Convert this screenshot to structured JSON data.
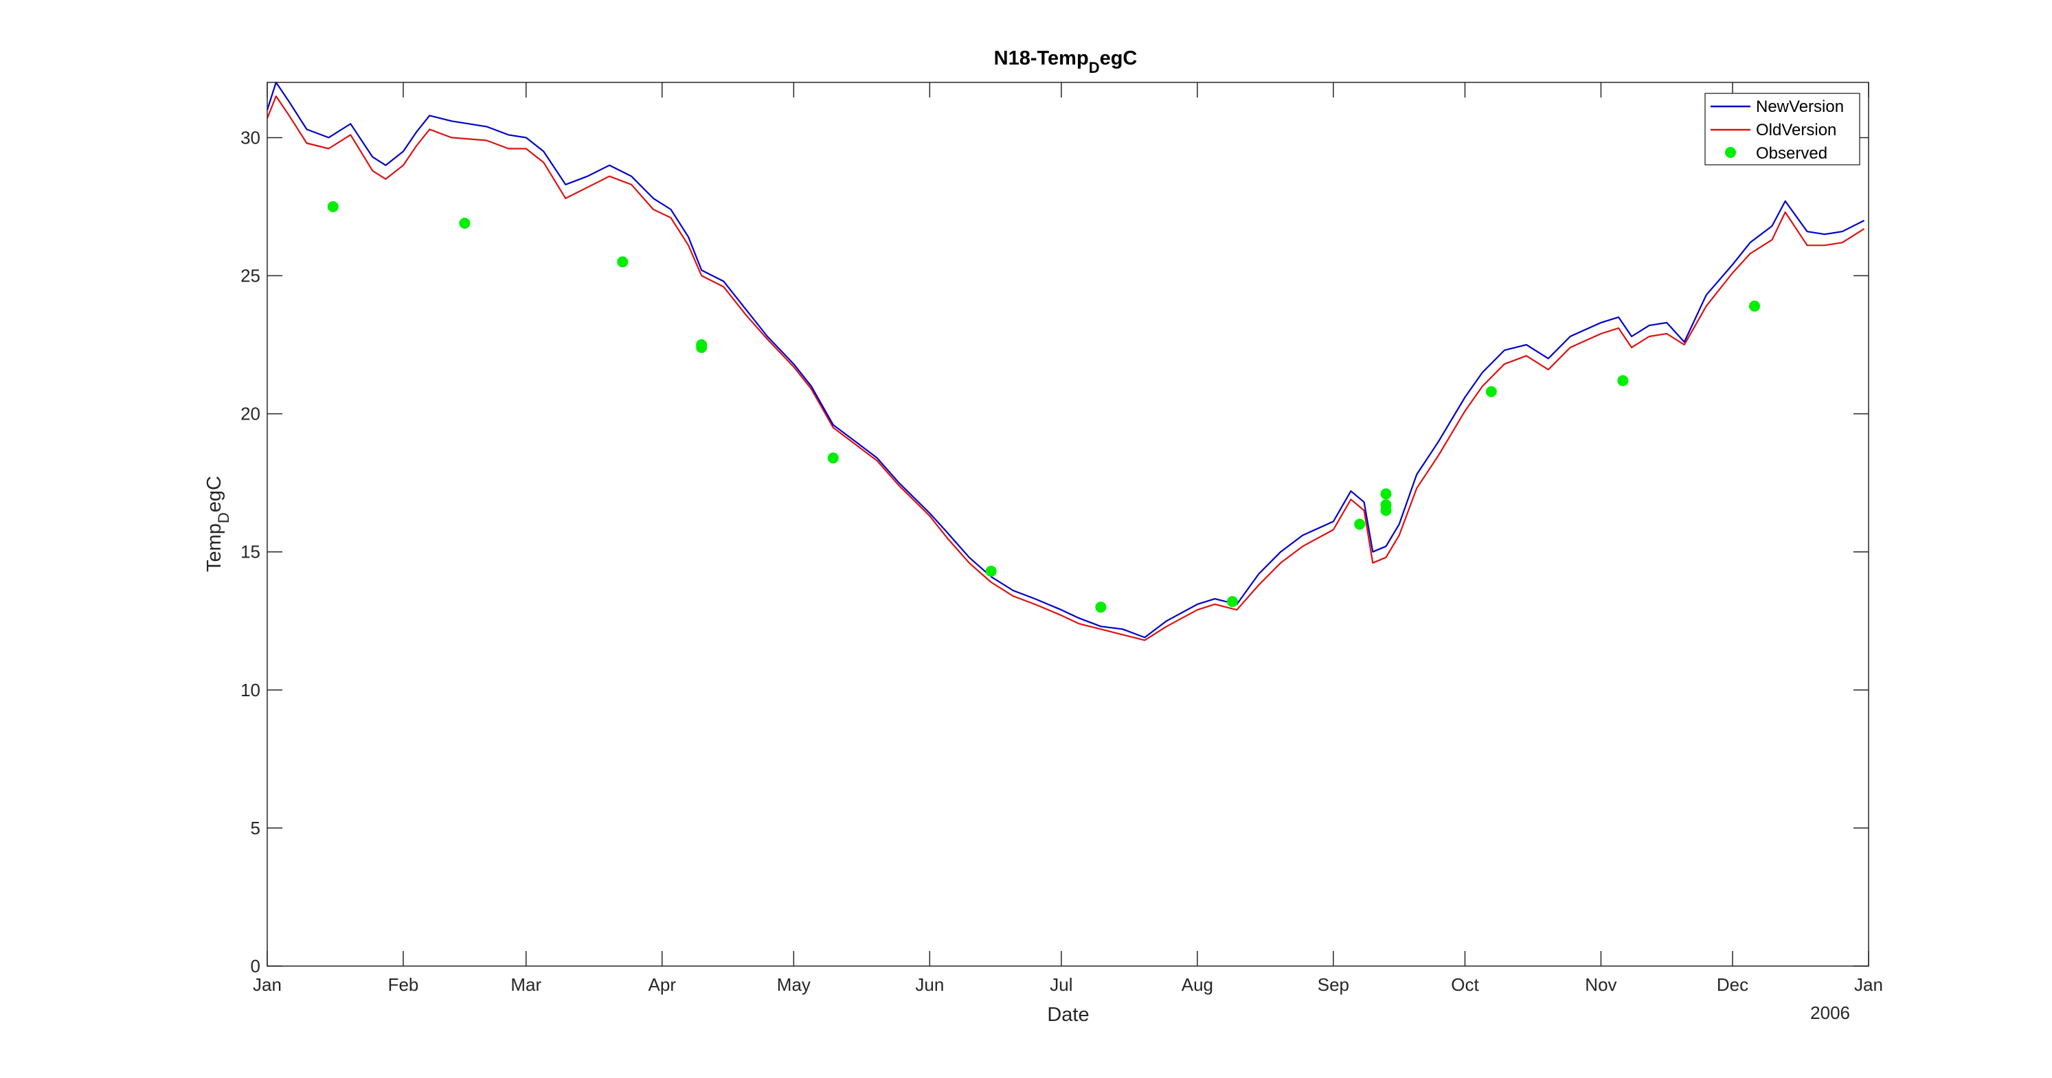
{
  "chart_data": {
    "type": "line",
    "title": {
      "main": "N18-Temp",
      "sub": "D",
      "tail": "egC"
    },
    "xlabel": "Date",
    "ylabel": {
      "main": "Temp",
      "sub": "D",
      "tail": "egC"
    },
    "year_label": "2006",
    "xlim": [
      "2006-01-01",
      "2007-01-01"
    ],
    "ylim": [
      0,
      32
    ],
    "y_ticks": [
      0,
      5,
      10,
      15,
      20,
      25,
      30
    ],
    "x_ticks": [
      {
        "date": "2006-01-01",
        "label": "Jan"
      },
      {
        "date": "2006-02-01",
        "label": "Feb"
      },
      {
        "date": "2006-03-01",
        "label": "Mar"
      },
      {
        "date": "2006-04-01",
        "label": "Apr"
      },
      {
        "date": "2006-05-01",
        "label": "May"
      },
      {
        "date": "2006-06-01",
        "label": "Jun"
      },
      {
        "date": "2006-07-01",
        "label": "Jul"
      },
      {
        "date": "2006-08-01",
        "label": "Aug"
      },
      {
        "date": "2006-09-01",
        "label": "Sep"
      },
      {
        "date": "2006-10-01",
        "label": "Oct"
      },
      {
        "date": "2006-11-01",
        "label": "Nov"
      },
      {
        "date": "2006-12-01",
        "label": "Dec"
      },
      {
        "date": "2007-01-01",
        "label": "Jan"
      }
    ],
    "grid": false,
    "legend_position": "top-right",
    "series": [
      {
        "name": "NewVersion",
        "color": "#0000cc",
        "style": "line",
        "x": [
          "2006-01-01",
          "2006-01-03",
          "2006-01-06",
          "2006-01-10",
          "2006-01-15",
          "2006-01-20",
          "2006-01-25",
          "2006-01-28",
          "2006-02-01",
          "2006-02-04",
          "2006-02-07",
          "2006-02-12",
          "2006-02-20",
          "2006-02-25",
          "2006-03-01",
          "2006-03-05",
          "2006-03-10",
          "2006-03-15",
          "2006-03-20",
          "2006-03-25",
          "2006-03-30",
          "2006-04-03",
          "2006-04-07",
          "2006-04-10",
          "2006-04-15",
          "2006-04-20",
          "2006-04-25",
          "2006-05-01",
          "2006-05-05",
          "2006-05-10",
          "2006-05-15",
          "2006-05-20",
          "2006-05-25",
          "2006-06-01",
          "2006-06-05",
          "2006-06-10",
          "2006-06-15",
          "2006-06-20",
          "2006-06-25",
          "2006-07-01",
          "2006-07-05",
          "2006-07-10",
          "2006-07-15",
          "2006-07-20",
          "2006-07-25",
          "2006-08-01",
          "2006-08-05",
          "2006-08-10",
          "2006-08-15",
          "2006-08-20",
          "2006-08-25",
          "2006-09-01",
          "2006-09-05",
          "2006-09-08",
          "2006-09-10",
          "2006-09-13",
          "2006-09-16",
          "2006-09-20",
          "2006-09-25",
          "2006-10-01",
          "2006-10-05",
          "2006-10-10",
          "2006-10-15",
          "2006-10-20",
          "2006-10-25",
          "2006-11-01",
          "2006-11-05",
          "2006-11-08",
          "2006-11-12",
          "2006-11-16",
          "2006-11-20",
          "2006-11-25",
          "2006-12-01",
          "2006-12-05",
          "2006-12-10",
          "2006-12-13",
          "2006-12-18",
          "2006-12-22",
          "2006-12-26",
          "2006-12-31"
        ],
        "y": [
          31.0,
          32.0,
          31.3,
          30.3,
          30.0,
          30.5,
          29.3,
          29.0,
          29.5,
          30.2,
          30.8,
          30.6,
          30.4,
          30.1,
          30.0,
          29.5,
          28.3,
          28.6,
          29.0,
          28.6,
          27.8,
          27.4,
          26.4,
          25.2,
          24.8,
          23.8,
          22.8,
          21.8,
          21.0,
          19.6,
          19.0,
          18.4,
          17.5,
          16.4,
          15.7,
          14.8,
          14.1,
          13.6,
          13.3,
          12.9,
          12.6,
          12.3,
          12.2,
          11.9,
          12.5,
          13.1,
          13.3,
          13.1,
          14.2,
          15.0,
          15.6,
          16.1,
          17.2,
          16.8,
          15.0,
          15.2,
          16.0,
          17.8,
          19.0,
          20.6,
          21.5,
          22.3,
          22.5,
          22.0,
          22.8,
          23.3,
          23.5,
          22.8,
          23.2,
          23.3,
          22.6,
          24.3,
          25.4,
          26.2,
          26.8,
          27.7,
          26.6,
          26.5,
          26.6,
          27.0
        ]
      },
      {
        "name": "OldVersion",
        "color": "#dd1111",
        "style": "line",
        "x": [
          "2006-01-01",
          "2006-01-03",
          "2006-01-06",
          "2006-01-10",
          "2006-01-15",
          "2006-01-20",
          "2006-01-25",
          "2006-01-28",
          "2006-02-01",
          "2006-02-04",
          "2006-02-07",
          "2006-02-12",
          "2006-02-20",
          "2006-02-25",
          "2006-03-01",
          "2006-03-05",
          "2006-03-10",
          "2006-03-15",
          "2006-03-20",
          "2006-03-25",
          "2006-03-30",
          "2006-04-03",
          "2006-04-07",
          "2006-04-10",
          "2006-04-15",
          "2006-04-20",
          "2006-04-25",
          "2006-05-01",
          "2006-05-05",
          "2006-05-10",
          "2006-05-15",
          "2006-05-20",
          "2006-05-25",
          "2006-06-01",
          "2006-06-05",
          "2006-06-10",
          "2006-06-15",
          "2006-06-20",
          "2006-06-25",
          "2006-07-01",
          "2006-07-05",
          "2006-07-10",
          "2006-07-15",
          "2006-07-20",
          "2006-07-25",
          "2006-08-01",
          "2006-08-05",
          "2006-08-10",
          "2006-08-15",
          "2006-08-20",
          "2006-08-25",
          "2006-09-01",
          "2006-09-05",
          "2006-09-08",
          "2006-09-10",
          "2006-09-13",
          "2006-09-16",
          "2006-09-20",
          "2006-09-25",
          "2006-10-01",
          "2006-10-05",
          "2006-10-10",
          "2006-10-15",
          "2006-10-20",
          "2006-10-25",
          "2006-11-01",
          "2006-11-05",
          "2006-11-08",
          "2006-11-12",
          "2006-11-16",
          "2006-11-20",
          "2006-11-25",
          "2006-12-01",
          "2006-12-05",
          "2006-12-10",
          "2006-12-13",
          "2006-12-18",
          "2006-12-22",
          "2006-12-26",
          "2006-12-31"
        ],
        "y": [
          30.7,
          31.5,
          30.8,
          29.8,
          29.6,
          30.1,
          28.8,
          28.5,
          29.0,
          29.7,
          30.3,
          30.0,
          29.9,
          29.6,
          29.6,
          29.1,
          27.8,
          28.2,
          28.6,
          28.3,
          27.4,
          27.1,
          26.1,
          25.0,
          24.6,
          23.6,
          22.7,
          21.7,
          20.9,
          19.5,
          18.9,
          18.3,
          17.4,
          16.3,
          15.5,
          14.6,
          13.9,
          13.4,
          13.1,
          12.7,
          12.4,
          12.2,
          12.0,
          11.8,
          12.3,
          12.9,
          13.1,
          12.9,
          13.8,
          14.6,
          15.2,
          15.8,
          16.9,
          16.5,
          14.6,
          14.8,
          15.6,
          17.3,
          18.5,
          20.1,
          21.0,
          21.8,
          22.1,
          21.6,
          22.4,
          22.9,
          23.1,
          22.4,
          22.8,
          22.9,
          22.5,
          23.9,
          25.1,
          25.8,
          26.3,
          27.3,
          26.1,
          26.1,
          26.2,
          26.7
        ]
      },
      {
        "name": "Observed",
        "color": "#00ee00",
        "style": "marker",
        "x": [
          "2006-01-16",
          "2006-02-15",
          "2006-03-23",
          "2006-04-10",
          "2006-04-10",
          "2006-05-10",
          "2006-06-15",
          "2006-07-10",
          "2006-08-09",
          "2006-09-07",
          "2006-09-13",
          "2006-09-13",
          "2006-09-13",
          "2006-10-07",
          "2006-11-06",
          "2006-12-06"
        ],
        "y": [
          27.5,
          26.9,
          25.5,
          22.5,
          22.4,
          18.4,
          14.3,
          13.0,
          13.2,
          16.0,
          17.1,
          16.7,
          16.5,
          20.8,
          21.2,
          23.9
        ]
      }
    ]
  }
}
